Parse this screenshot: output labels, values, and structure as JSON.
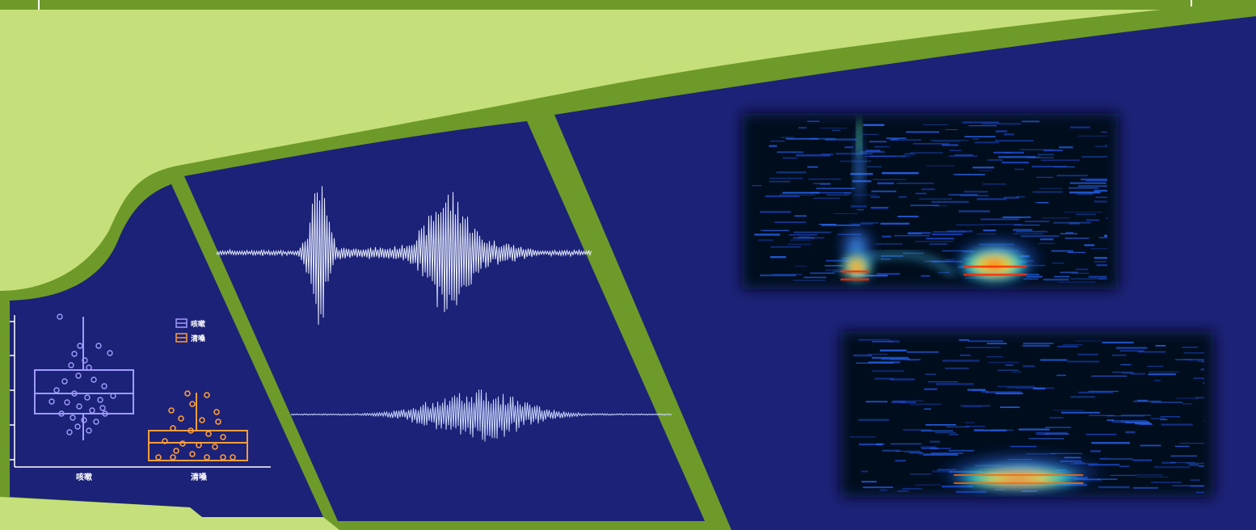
{
  "colors": {
    "light_green": "#c5e07a",
    "dark_green": "#6e9a2a",
    "navy": "#1c2277",
    "cough_color": "#9f9cff",
    "throat_clear_color": "#ff9d3a"
  },
  "box_plot": {
    "categories": [
      "咳嗽",
      "清嗓"
    ],
    "legend": [
      {
        "label": "咳嗽",
        "color": "#9f9cff"
      },
      {
        "label": "清嗓",
        "color": "#ff9d3a"
      }
    ]
  },
  "waveforms": [
    {
      "name": "cough-waveform",
      "shape": "two-burst"
    },
    {
      "name": "throat-clear-waveform",
      "shape": "single-burst"
    }
  ],
  "spectrograms": [
    {
      "name": "cough-spectrogram",
      "colormap": "jet"
    },
    {
      "name": "throat-clear-spectrogram",
      "colormap": "jet"
    }
  ]
}
